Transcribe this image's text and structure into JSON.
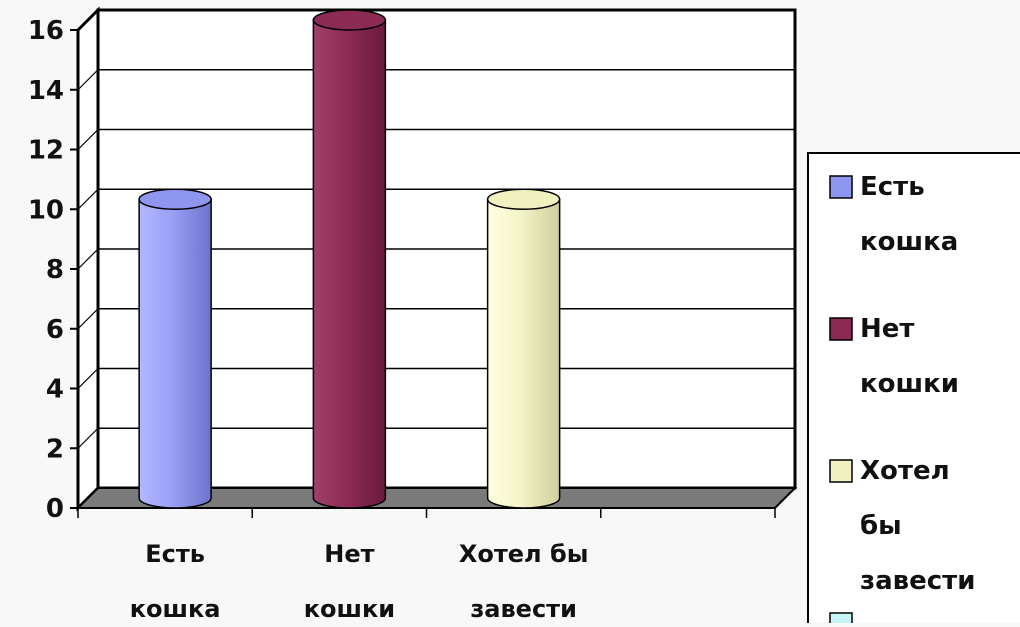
{
  "chart_data": {
    "type": "bar",
    "categories": [
      [
        "Есть",
        "кошка"
      ],
      [
        "Нет",
        "кошки"
      ],
      [
        "Хотел бы",
        "завести"
      ]
    ],
    "values": [
      10,
      16,
      10
    ],
    "ylim": [
      0,
      16
    ],
    "y_ticks": [
      "0",
      "2",
      "4",
      "6",
      "8",
      "10",
      "12",
      "14",
      "16"
    ],
    "grid": true,
    "legend": {
      "placement": "right",
      "entries": [
        {
          "label": [
            "Есть",
            "кошка"
          ],
          "color": "#8f96f0"
        },
        {
          "label": [
            "Нет",
            "кошки"
          ],
          "color": "#8b2a52"
        },
        {
          "label": [
            "Хотел",
            "бы",
            "завести"
          ],
          "color": "#f0f0c0"
        },
        {
          "label": [],
          "color": "#c8f4f8"
        }
      ]
    },
    "colors": {
      "bar_1": "#8f96f0",
      "bar_2": "#8b2a52",
      "bar_3": "#f0f0c0",
      "floor": "#7a7a7a",
      "background": "#f8f8f8"
    }
  }
}
